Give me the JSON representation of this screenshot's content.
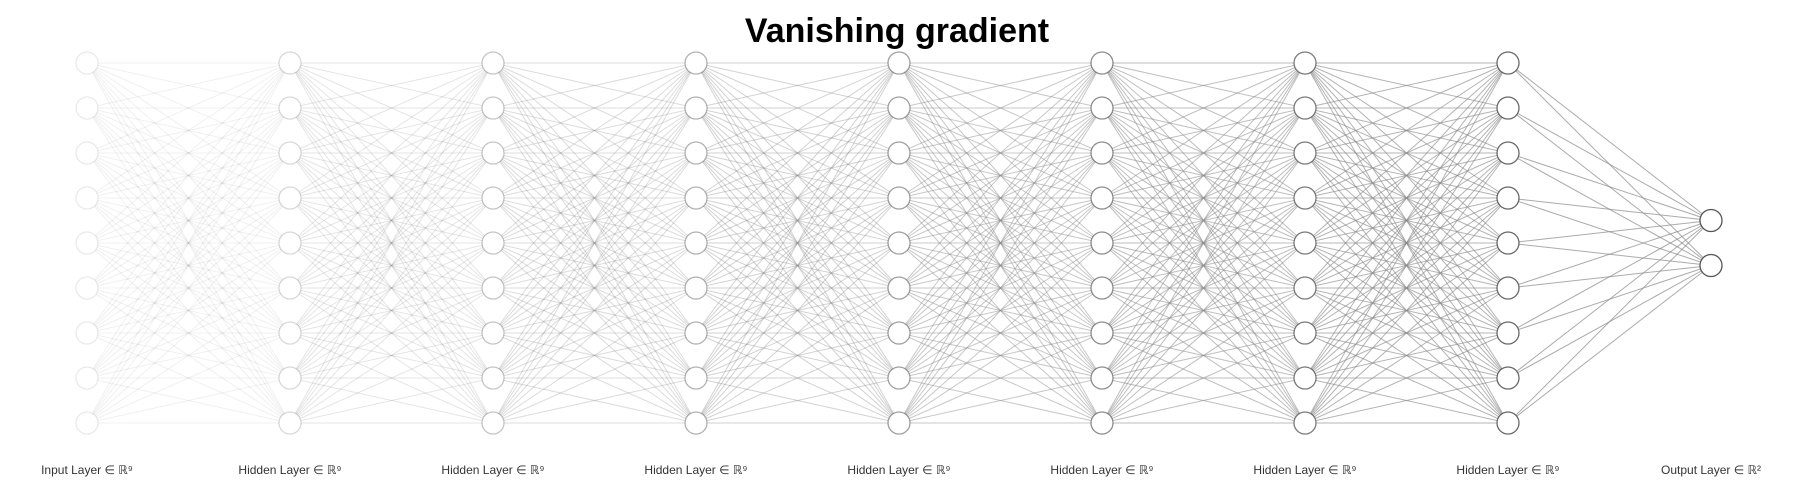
{
  "title": "Vanishing gradient",
  "network": {
    "layers": [
      {
        "label": "Input Layer ∈ ℝ⁹",
        "units": 9
      },
      {
        "label": "Hidden Layer ∈ ℝ⁹",
        "units": 9
      },
      {
        "label": "Hidden Layer ∈ ℝ⁹",
        "units": 9
      },
      {
        "label": "Hidden Layer ∈ ℝ⁹",
        "units": 9
      },
      {
        "label": "Hidden Layer ∈ ℝ⁹",
        "units": 9
      },
      {
        "label": "Hidden Layer ∈ ℝ⁹",
        "units": 9
      },
      {
        "label": "Hidden Layer ∈ ℝ⁹",
        "units": 9
      },
      {
        "label": "Hidden Layer ∈ ℝ⁹",
        "units": 9
      },
      {
        "label": "Output Layer ∈ ℝ²",
        "units": 2
      }
    ],
    "colors": {
      "node_stroke": "#555555",
      "edge_stroke": "#888888",
      "node_fill": "#ffffff"
    }
  }
}
